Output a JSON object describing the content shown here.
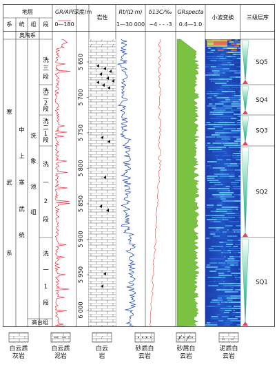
{
  "header": {
    "strata": "地层",
    "system": "系",
    "series": "统",
    "group": "组",
    "member": "段",
    "gr": "GR/API",
    "gr_range": "0—180",
    "depth": "深度/m",
    "lithology": "岩性",
    "rt": "Rt/(Ω·m)",
    "rt_range": "1—30 000",
    "d13c": "δ13C/‰",
    "d13c_range": "−4 - - -3",
    "grspecta": "GRspecta",
    "grspecta_range": "0.4—1.0",
    "wavelet": "小波变换",
    "sequence": "三级层序"
  },
  "strata": {
    "ordovician": "奥陶系",
    "cambrian_system": "寒武系",
    "series": "中上寒武统",
    "group": "洗象池组",
    "gaotai": "高台组",
    "members": [
      {
        "label": "洗三段"
      },
      {
        "label": "洗二2段"
      },
      {
        "label": "洗二1段"
      },
      {
        "label": "洗一2段"
      },
      {
        "label": "洗一1段"
      }
    ]
  },
  "depth_ticks": [
    "5 650",
    "5 700",
    "5 750",
    "5 800",
    "5 850",
    "5 900",
    "5 950",
    "6 000"
  ],
  "sequences": [
    {
      "label": "SQ5"
    },
    {
      "label": "SQ4"
    },
    {
      "label": "SQ3"
    },
    {
      "label": "SQ2"
    },
    {
      "label": "SQ1"
    }
  ],
  "legend": [
    {
      "label": "白云质灰岩",
      "pattern": "dolomitic-limestone"
    },
    {
      "label": "白云质泥岩",
      "pattern": "dolomitic-mudstone"
    },
    {
      "label": "白云岩",
      "pattern": "dolomite"
    },
    {
      "label": "砂质白云岩",
      "pattern": "sandy-dolomite"
    },
    {
      "label": "砂屑白云岩",
      "pattern": "arenaceous-dolomite"
    },
    {
      "label": "泥质白云岩",
      "pattern": "argillaceous-dolomite"
    }
  ],
  "colors": {
    "gr_curve": "#e8434f",
    "rt_curve": "#2b4fb8",
    "d13c_curve": "#e85a5a",
    "grspecta_fill": "#7cc242",
    "wavelet_base": "#1a3fb0",
    "sequence_fill": "#2fb88a",
    "sequence_tip": "#e8405a"
  }
}
